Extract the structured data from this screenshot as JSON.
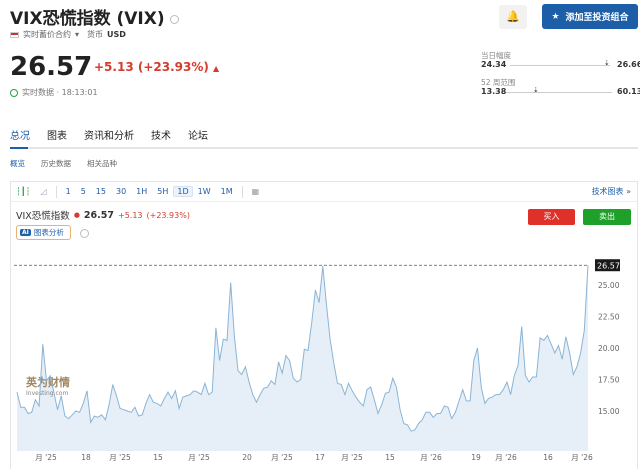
{
  "header": {
    "title": "VIX恐慌指数 (VIX)",
    "contract": "实时蓄价合约",
    "currency_label": "货币",
    "currency": "USD",
    "price": "26.57",
    "change": "+5.13 (+23.93%)",
    "realtime": "实时数据 · 18:13:01",
    "add_portfolio": "添加至投资组合"
  },
  "ranges": {
    "day_label": "当日幅度",
    "day_low": "24.34",
    "day_high": "26.66",
    "day_pos": 0.95,
    "wk52_label": "52 周范围",
    "wk52_low": "13.38",
    "wk52_high": "60.13",
    "wk52_pos": 0.28
  },
  "tabs": [
    "总况",
    "图表",
    "资讯和分析",
    "技术",
    "论坛"
  ],
  "subtabs": [
    "概览",
    "历史数据",
    "相关品种"
  ],
  "toolbar": {
    "intervals": [
      "1",
      "5",
      "15",
      "30",
      "1H",
      "5H",
      "1D",
      "1W",
      "1M"
    ],
    "selected": "1D",
    "tech_chart": "技术图表 »"
  },
  "chart_legend": {
    "name": "VIX恐慌指数",
    "price": "26.57",
    "change": "+5.13",
    "pct": "(+23.93%)",
    "ai": "图表分析",
    "buy": "买入",
    "sell": "卖出"
  },
  "colors": {
    "accent": "#1d5ea8",
    "up": "#d63b2f",
    "buy": "#e0302a",
    "sell": "#1fa02a",
    "line": "#8ab4d6"
  },
  "chart_data": {
    "type": "area",
    "last_label": "26.57",
    "y_ticks": [
      "15.00",
      "17.50",
      "20.00",
      "22.50",
      "25.00"
    ],
    "ylim": [
      11.8,
      27
    ],
    "x_ticks": [
      "月 '25",
      "18",
      "月 '25",
      "15",
      "月 '25",
      "20",
      "月 '25",
      "17",
      "月 '25",
      "15",
      "月 '26",
      "19",
      "月 '26",
      "16",
      "月 '26"
    ],
    "values": [
      16.5,
      15.3,
      15.3,
      14.8,
      14.9,
      15.9,
      15.4,
      20.3,
      17.4,
      17.8,
      16.5,
      15.1,
      16.2,
      14.6,
      14.4,
      14.7,
      15.0,
      14.9,
      15.6,
      16.6,
      14.1,
      14.6,
      14.5,
      14.7,
      14.3,
      15.5,
      17.1,
      16.2,
      15.2,
      15.1,
      15.0,
      14.9,
      15.3,
      14.6,
      14.7,
      15.6,
      16.3,
      15.7,
      15.6,
      15.4,
      16.0,
      16.5,
      16.0,
      16.6,
      15.2,
      16.1,
      16.2,
      16.3,
      16.6,
      16.5,
      16.3,
      17.2,
      16.3,
      16.5,
      21.6,
      19.0,
      20.7,
      20.6,
      25.2,
      21.0,
      18.2,
      17.9,
      18.5,
      17.3,
      16.3,
      15.7,
      16.3,
      16.8,
      16.9,
      17.4,
      17.1,
      18.9,
      18.0,
      19.4,
      19.0,
      17.6,
      17.3,
      17.5,
      19.9,
      19.8,
      22.0,
      24.6,
      23.6,
      26.5,
      23.5,
      20.7,
      18.8,
      17.2,
      17.1,
      16.3,
      17.2,
      16.6,
      16.1,
      15.7,
      15.4,
      16.7,
      16.9,
      15.9,
      14.8,
      15.5,
      16.4,
      16.5,
      17.6,
      16.9,
      15.1,
      14.0,
      13.9,
      13.4,
      13.5,
      14.0,
      14.3,
      14.9,
      14.9,
      14.5,
      14.8,
      14.8,
      15.4,
      15.3,
      14.4,
      14.9,
      15.8,
      16.7,
      15.8,
      15.8,
      19.0,
      20.0,
      16.9,
      15.6,
      16.0,
      16.1,
      16.3,
      16.3,
      16.7,
      17.3,
      16.3,
      17.8,
      18.6,
      21.7,
      17.8,
      17.3,
      17.7,
      17.7,
      20.8,
      20.6,
      21.0,
      20.3,
      19.6,
      20.2,
      19.1,
      20.9,
      19.6,
      17.9,
      18.5,
      19.6,
      21.4,
      26.57
    ]
  }
}
